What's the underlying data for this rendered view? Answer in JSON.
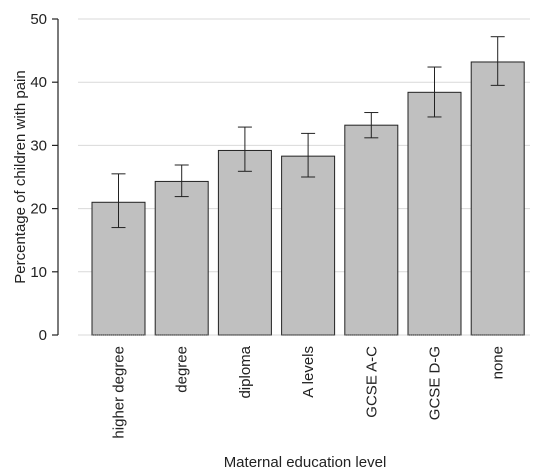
{
  "chart_data": {
    "type": "bar",
    "title": "",
    "xlabel": "Maternal education level",
    "ylabel": "Percentage of children with pain",
    "ylim": [
      0,
      50
    ],
    "yticks": [
      "0",
      "10",
      "20",
      "30",
      "40",
      "50"
    ],
    "categories": [
      "higher degree",
      "degree",
      "diploma",
      "A levels",
      "GCSE A-C",
      "GCSE D-G",
      "none"
    ],
    "values": [
      21.0,
      24.3,
      29.2,
      28.3,
      33.2,
      38.4,
      43.2
    ],
    "error_low": [
      17.0,
      21.9,
      25.9,
      25.0,
      31.2,
      34.5,
      39.5
    ],
    "error_high": [
      25.5,
      26.9,
      32.9,
      31.9,
      35.2,
      42.4,
      47.2
    ],
    "grid": "horizontal",
    "colors": {
      "bar": "#c0c0c0",
      "bar_edge": "#222222",
      "grid": "#d9d9d9"
    }
  }
}
